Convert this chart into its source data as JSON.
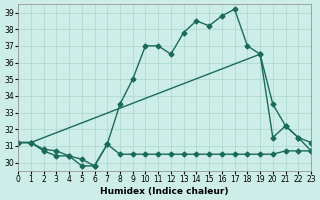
{
  "xlabel": "Humidex (Indice chaleur)",
  "xlim": [
    0,
    23
  ],
  "ylim": [
    29.5,
    39.5
  ],
  "xticks": [
    0,
    1,
    2,
    3,
    4,
    5,
    6,
    7,
    8,
    9,
    10,
    11,
    12,
    13,
    14,
    15,
    16,
    17,
    18,
    19,
    20,
    21,
    22,
    23
  ],
  "yticks": [
    30,
    31,
    32,
    33,
    34,
    35,
    36,
    37,
    38,
    39
  ],
  "bg_color": "#cdeee8",
  "grid_color": "#aad8cc",
  "line_color": "#1a6b5a",
  "line1_x": [
    0,
    1,
    2,
    3,
    4,
    5,
    6,
    7,
    8,
    9,
    10,
    11,
    12,
    13,
    14,
    15,
    16,
    17,
    18,
    19,
    20,
    21,
    22,
    23
  ],
  "line1_y": [
    31.2,
    31.2,
    30.8,
    30.7,
    30.4,
    30.2,
    29.8,
    31.1,
    33.5,
    35.0,
    37.0,
    37.0,
    36.5,
    37.8,
    38.5,
    38.2,
    38.8,
    39.2,
    37.0,
    36.5,
    31.5,
    32.2,
    31.5,
    31.2
  ],
  "line2_x": [
    0,
    1,
    19,
    20,
    21,
    22,
    23
  ],
  "line2_y": [
    31.2,
    31.2,
    36.5,
    33.5,
    32.2,
    31.5,
    30.7
  ],
  "line3_x": [
    0,
    1,
    2,
    3,
    4,
    5,
    6,
    7,
    8,
    9,
    10,
    11,
    12,
    13,
    14,
    15,
    16,
    17,
    18,
    19,
    20,
    21,
    22,
    23
  ],
  "line3_y": [
    31.2,
    31.2,
    30.7,
    30.4,
    30.4,
    29.8,
    29.8,
    31.1,
    30.5,
    30.5,
    30.5,
    30.5,
    30.5,
    30.5,
    30.5,
    30.5,
    30.5,
    30.5,
    30.5,
    30.5,
    30.5,
    30.7,
    30.7,
    30.7
  ],
  "linewidth": 1.0,
  "marker_size": 2.5
}
